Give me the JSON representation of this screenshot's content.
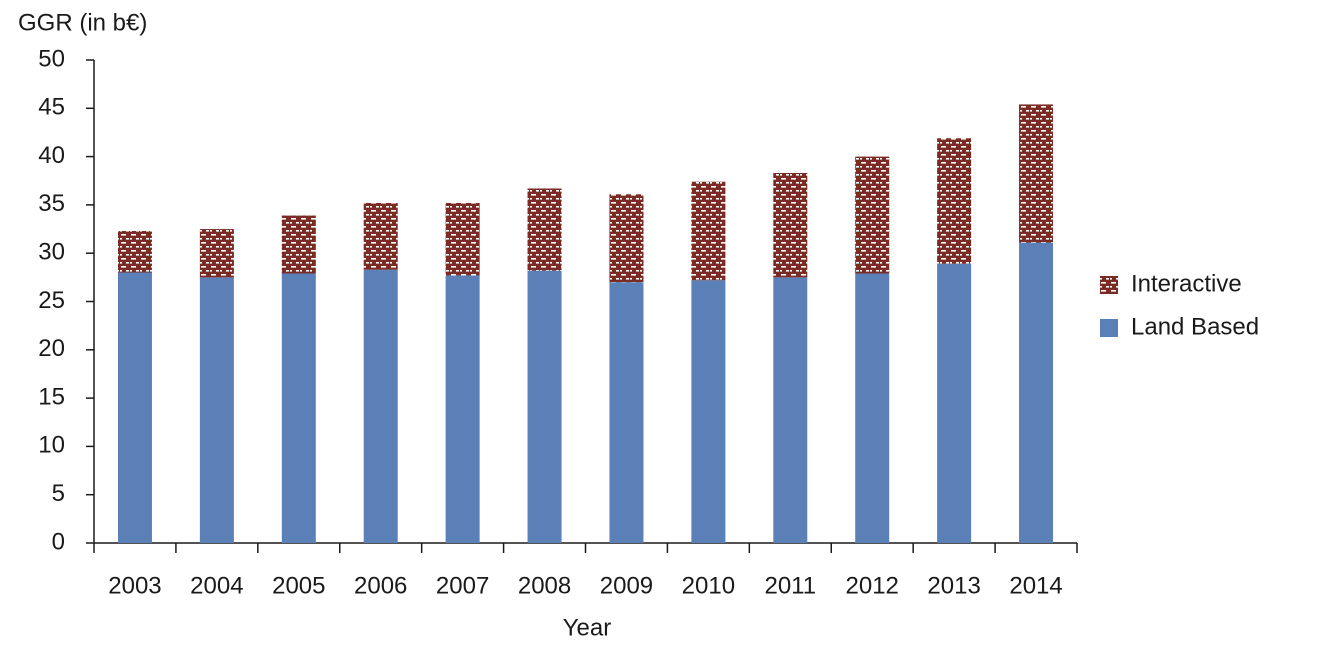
{
  "chart_data": {
    "type": "stacked-bar",
    "y_label": "GGR (in b€)",
    "x_label": "Year",
    "categories": [
      "2003",
      "2004",
      "2005",
      "2006",
      "2007",
      "2008",
      "2009",
      "2010",
      "2011",
      "2012",
      "2013",
      "2014"
    ],
    "series": [
      {
        "name": "Land Based",
        "color": "#5b7fb7",
        "values": [
          28.0,
          27.5,
          27.9,
          28.3,
          27.7,
          28.2,
          27.0,
          27.2,
          27.5,
          27.9,
          28.9,
          31.1
        ]
      },
      {
        "name": "Interactive",
        "color": "#7a2b24",
        "pattern": "dashes",
        "values": [
          4.3,
          5.0,
          6.0,
          6.9,
          7.5,
          8.5,
          9.1,
          10.2,
          10.8,
          12.1,
          13.0,
          14.3
        ]
      }
    ],
    "ylim": [
      0,
      50
    ],
    "yticks": [
      0,
      5,
      10,
      15,
      20,
      25,
      30,
      35,
      40,
      45,
      50
    ],
    "grid": false,
    "legend": "right"
  }
}
